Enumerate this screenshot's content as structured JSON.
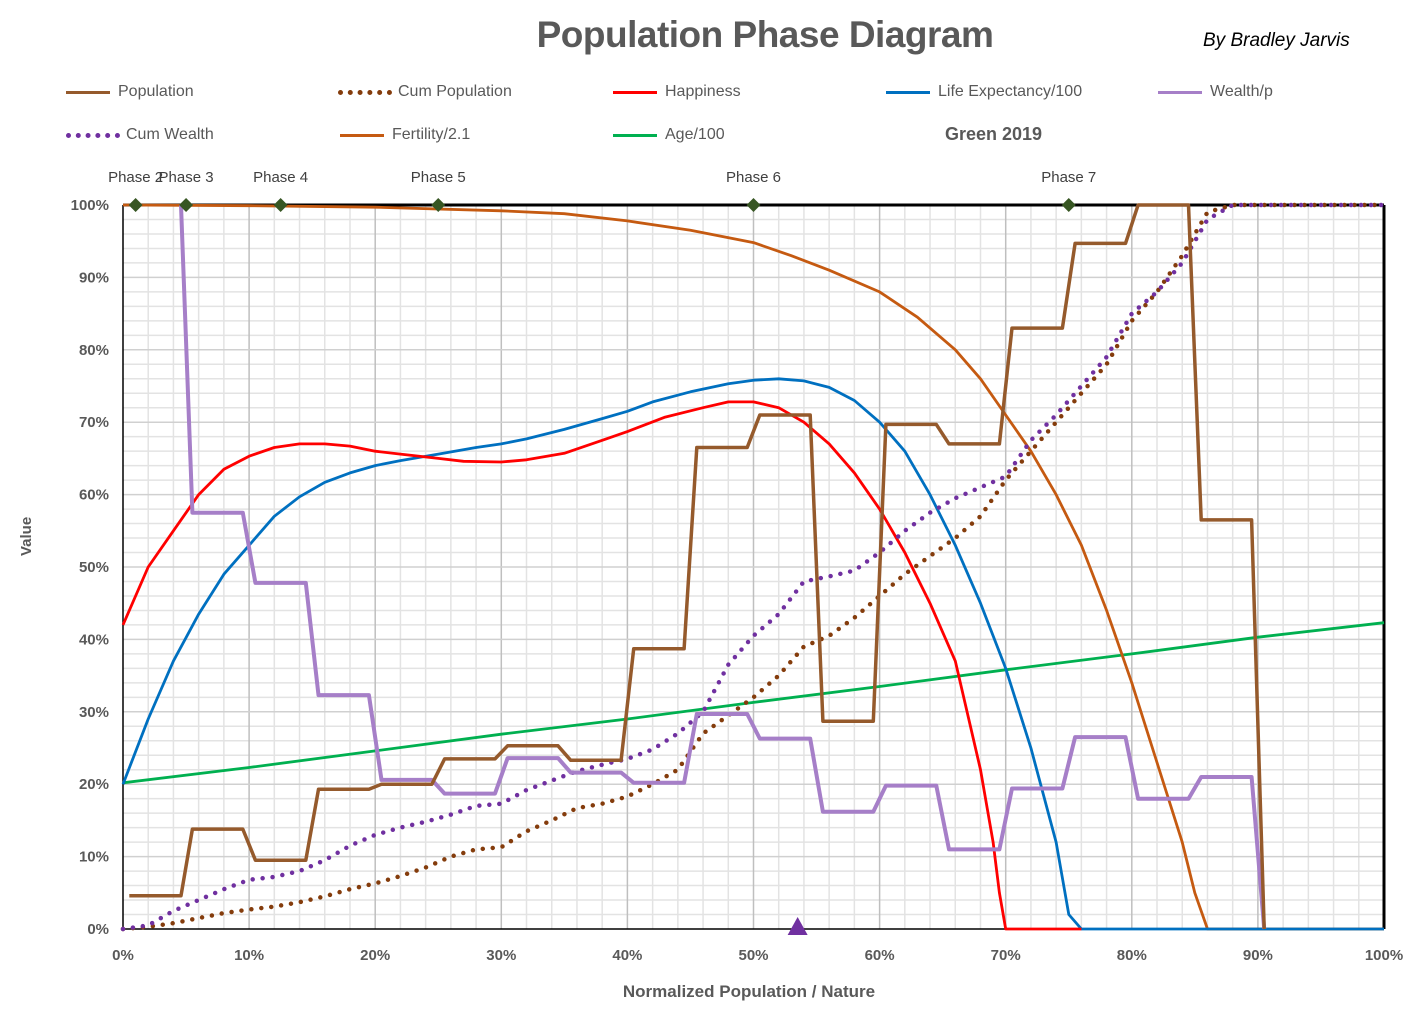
{
  "title": "Population Phase Diagram",
  "author": "By Bradley Jarvis",
  "note": "Green 2019",
  "colors": {
    "population": "#955A2C",
    "cum_population": "#843C0C",
    "happiness": "#FF0000",
    "life_expectancy": "#0070C0",
    "wealth_p": "#A67FC8",
    "cum_wealth": "#7030A0",
    "fertility": "#C55A11",
    "age": "#00B050",
    "phase_marker": "#375623",
    "triangle_marker": "#7030A0"
  },
  "chart_data": {
    "type": "line",
    "title": "Population Phase Diagram",
    "xlabel": "Normalized Population  / Nature",
    "ylabel": "Value",
    "xlim": [
      0,
      100
    ],
    "ylim": [
      0,
      100
    ],
    "x_ticks": [
      "0%",
      "10%",
      "20%",
      "30%",
      "40%",
      "50%",
      "60%",
      "70%",
      "80%",
      "90%",
      "100%"
    ],
    "y_ticks": [
      "0%",
      "10%",
      "20%",
      "30%",
      "40%",
      "50%",
      "60%",
      "70%",
      "80%",
      "90%",
      "100%"
    ],
    "grid": true,
    "legend": [
      {
        "key": "population",
        "label": "Population",
        "style": "solid"
      },
      {
        "key": "cum_population",
        "label": "Cum Population",
        "style": "dotted"
      },
      {
        "key": "happiness",
        "label": "Happiness",
        "style": "solid"
      },
      {
        "key": "life_expectancy",
        "label": "Life Expectancy/100",
        "style": "solid"
      },
      {
        "key": "wealth_p",
        "label": "Wealth/p",
        "style": "solid"
      },
      {
        "key": "cum_wealth",
        "label": "Cum Wealth",
        "style": "dotted"
      },
      {
        "key": "fertility",
        "label": "Fertility/2.1",
        "style": "solid"
      },
      {
        "key": "age",
        "label": "Age/100",
        "style": "solid"
      }
    ],
    "series": [
      {
        "key": "age",
        "name": "Age/100",
        "points": [
          [
            0,
            20.2
          ],
          [
            10,
            22.3
          ],
          [
            20,
            24.6
          ],
          [
            30,
            26.9
          ],
          [
            40,
            29
          ],
          [
            50,
            31.3
          ],
          [
            60,
            33.5
          ],
          [
            70,
            35.8
          ],
          [
            80,
            38
          ],
          [
            90,
            40.3
          ],
          [
            100,
            42.3
          ]
        ]
      },
      {
        "key": "fertility",
        "name": "Fertility/2.1",
        "points": [
          [
            0,
            100
          ],
          [
            10,
            99.9
          ],
          [
            20,
            99.7
          ],
          [
            30,
            99.2
          ],
          [
            35,
            98.8
          ],
          [
            40,
            97.8
          ],
          [
            45,
            96.5
          ],
          [
            50,
            94.8
          ],
          [
            53,
            93
          ],
          [
            56,
            91
          ],
          [
            60,
            88
          ],
          [
            63,
            84.5
          ],
          [
            66,
            80
          ],
          [
            68,
            76
          ],
          [
            70,
            71
          ],
          [
            72,
            66
          ],
          [
            74,
            60
          ],
          [
            76,
            53
          ],
          [
            78,
            44
          ],
          [
            80,
            34
          ],
          [
            82,
            23
          ],
          [
            84,
            12
          ],
          [
            85,
            5
          ],
          [
            86,
            0
          ],
          [
            100,
            0
          ]
        ]
      },
      {
        "key": "life_expectancy",
        "name": "Life Expectancy/100",
        "points": [
          [
            0,
            20
          ],
          [
            2,
            29
          ],
          [
            4,
            37
          ],
          [
            6,
            43.5
          ],
          [
            8,
            49
          ],
          [
            10,
            53
          ],
          [
            12,
            57
          ],
          [
            14,
            59.7
          ],
          [
            16,
            61.7
          ],
          [
            18,
            63
          ],
          [
            20,
            64
          ],
          [
            22,
            64.7
          ],
          [
            25,
            65.6
          ],
          [
            28,
            66.5
          ],
          [
            30,
            67
          ],
          [
            32,
            67.7
          ],
          [
            35,
            69
          ],
          [
            38,
            70.5
          ],
          [
            40,
            71.5
          ],
          [
            42,
            72.8
          ],
          [
            45,
            74.2
          ],
          [
            48,
            75.3
          ],
          [
            50,
            75.8
          ],
          [
            52,
            76
          ],
          [
            54,
            75.7
          ],
          [
            56,
            74.8
          ],
          [
            58,
            73
          ],
          [
            60,
            70
          ],
          [
            62,
            66
          ],
          [
            64,
            60
          ],
          [
            66,
            53
          ],
          [
            68,
            45
          ],
          [
            70,
            36
          ],
          [
            72,
            25
          ],
          [
            74,
            12
          ],
          [
            75,
            2
          ],
          [
            76,
            0
          ],
          [
            100,
            0
          ]
        ]
      },
      {
        "key": "happiness",
        "name": "Happiness",
        "points": [
          [
            0,
            42
          ],
          [
            2,
            50
          ],
          [
            4,
            55
          ],
          [
            6,
            60
          ],
          [
            8,
            63.5
          ],
          [
            10,
            65.3
          ],
          [
            12,
            66.5
          ],
          [
            14,
            67
          ],
          [
            16,
            67
          ],
          [
            18,
            66.7
          ],
          [
            20,
            66
          ],
          [
            22,
            65.6
          ],
          [
            25,
            65
          ],
          [
            27,
            64.6
          ],
          [
            30,
            64.5
          ],
          [
            32,
            64.8
          ],
          [
            35,
            65.7
          ],
          [
            38,
            67.5
          ],
          [
            40,
            68.7
          ],
          [
            43,
            70.7
          ],
          [
            46,
            72
          ],
          [
            48,
            72.8
          ],
          [
            50,
            72.8
          ],
          [
            52,
            72
          ],
          [
            54,
            70
          ],
          [
            56,
            67
          ],
          [
            58,
            63
          ],
          [
            60,
            58
          ],
          [
            62,
            52
          ],
          [
            64,
            45
          ],
          [
            66,
            37
          ],
          [
            68,
            22
          ],
          [
            69,
            12
          ],
          [
            69.5,
            5
          ],
          [
            70,
            0
          ],
          [
            76,
            0
          ]
        ]
      },
      {
        "key": "cum_population",
        "name": "Cum Population",
        "points": [
          [
            0,
            0
          ],
          [
            2,
            0.3
          ],
          [
            4,
            0.8
          ],
          [
            6,
            1.5
          ],
          [
            8,
            2.2
          ],
          [
            10,
            2.7
          ],
          [
            12,
            3.1
          ],
          [
            14,
            3.7
          ],
          [
            16,
            4.5
          ],
          [
            18,
            5.5
          ],
          [
            20,
            6.3
          ],
          [
            22,
            7.3
          ],
          [
            24,
            8.5
          ],
          [
            26,
            10
          ],
          [
            28,
            11
          ],
          [
            30,
            11.3
          ],
          [
            32,
            13.5
          ],
          [
            34,
            15
          ],
          [
            36,
            16.7
          ],
          [
            38,
            17.3
          ],
          [
            40,
            18.3
          ],
          [
            42,
            20
          ],
          [
            44,
            22
          ],
          [
            46,
            27
          ],
          [
            48,
            29.5
          ],
          [
            50,
            32
          ],
          [
            52,
            35
          ],
          [
            54,
            39
          ],
          [
            56,
            40.5
          ],
          [
            58,
            43
          ],
          [
            60,
            46
          ],
          [
            62,
            49
          ],
          [
            64,
            51.5
          ],
          [
            66,
            54
          ],
          [
            68,
            57
          ],
          [
            70,
            62
          ],
          [
            72,
            66
          ],
          [
            74,
            70
          ],
          [
            76,
            74
          ],
          [
            78,
            78
          ],
          [
            80,
            84
          ],
          [
            82,
            88
          ],
          [
            84,
            93
          ],
          [
            86,
            99
          ],
          [
            88,
            100
          ],
          [
            100,
            100
          ]
        ]
      },
      {
        "key": "cum_wealth",
        "name": "Cum Wealth",
        "points": [
          [
            0,
            0
          ],
          [
            2,
            0.5
          ],
          [
            4,
            2.5
          ],
          [
            6,
            4
          ],
          [
            8,
            5.5
          ],
          [
            10,
            6.8
          ],
          [
            12,
            7.2
          ],
          [
            14,
            8
          ],
          [
            16,
            9.5
          ],
          [
            18,
            11.5
          ],
          [
            20,
            13
          ],
          [
            22,
            14
          ],
          [
            24,
            14.8
          ],
          [
            26,
            15.8
          ],
          [
            28,
            17
          ],
          [
            30,
            17.3
          ],
          [
            32,
            19.2
          ],
          [
            34,
            20.5
          ],
          [
            36,
            21.8
          ],
          [
            38,
            22.7
          ],
          [
            40,
            23.5
          ],
          [
            42,
            24.8
          ],
          [
            44,
            27
          ],
          [
            46,
            30
          ],
          [
            48,
            36.5
          ],
          [
            50,
            40.5
          ],
          [
            52,
            43.5
          ],
          [
            54,
            48
          ],
          [
            56,
            48.7
          ],
          [
            58,
            49.5
          ],
          [
            60,
            52
          ],
          [
            62,
            55
          ],
          [
            64,
            57.5
          ],
          [
            66,
            59.5
          ],
          [
            68,
            61
          ],
          [
            70,
            62.5
          ],
          [
            72,
            67.5
          ],
          [
            74,
            71
          ],
          [
            76,
            75
          ],
          [
            78,
            79
          ],
          [
            80,
            85
          ],
          [
            82,
            88
          ],
          [
            84,
            92
          ],
          [
            86,
            98
          ],
          [
            88,
            100
          ],
          [
            100,
            100
          ]
        ]
      },
      {
        "key": "wealth_p",
        "name": "Wealth/p",
        "points": [
          [
            4.6,
            100
          ],
          [
            5.5,
            57.5
          ],
          [
            9.5,
            57.5
          ],
          [
            10.5,
            47.8
          ],
          [
            14.5,
            47.8
          ],
          [
            15.5,
            32.3
          ],
          [
            19.5,
            32.3
          ],
          [
            20.5,
            20.6
          ],
          [
            24.5,
            20.6
          ],
          [
            25.5,
            18.7
          ],
          [
            29.5,
            18.7
          ],
          [
            30.5,
            23.6
          ],
          [
            34.5,
            23.6
          ],
          [
            35.5,
            21.6
          ],
          [
            39.5,
            21.6
          ],
          [
            40.5,
            20.2
          ],
          [
            44.5,
            20.2
          ],
          [
            45.5,
            29.7
          ],
          [
            49.5,
            29.7
          ],
          [
            50.5,
            26.3
          ],
          [
            54.5,
            26.3
          ],
          [
            55.5,
            16.2
          ],
          [
            59.5,
            16.2
          ],
          [
            60.5,
            19.8
          ],
          [
            64.5,
            19.8
          ],
          [
            65.5,
            11
          ],
          [
            69.5,
            11
          ],
          [
            70.5,
            19.4
          ],
          [
            74.5,
            19.4
          ],
          [
            75.5,
            26.5
          ],
          [
            79.5,
            26.5
          ],
          [
            80.5,
            18
          ],
          [
            84.5,
            18
          ],
          [
            85.5,
            21
          ],
          [
            89.5,
            21
          ],
          [
            90.5,
            0
          ]
        ]
      },
      {
        "key": "population",
        "name": "Population",
        "points": [
          [
            0.5,
            4.6
          ],
          [
            4.6,
            4.6
          ],
          [
            5.5,
            13.8
          ],
          [
            9.5,
            13.8
          ],
          [
            10.5,
            9.5
          ],
          [
            14.5,
            9.5
          ],
          [
            15.5,
            19.3
          ],
          [
            19.5,
            19.3
          ],
          [
            20.5,
            20
          ],
          [
            24.5,
            20
          ],
          [
            25.5,
            23.5
          ],
          [
            29.5,
            23.5
          ],
          [
            30.5,
            25.3
          ],
          [
            34.5,
            25.3
          ],
          [
            35.5,
            23.3
          ],
          [
            39.5,
            23.3
          ],
          [
            40.5,
            38.7
          ],
          [
            44.5,
            38.7
          ],
          [
            45.5,
            66.5
          ],
          [
            49.5,
            66.5
          ],
          [
            50.5,
            71
          ],
          [
            54.5,
            71
          ],
          [
            55.5,
            28.7
          ],
          [
            59.5,
            28.7
          ],
          [
            60.5,
            69.7
          ],
          [
            64.5,
            69.7
          ],
          [
            65.5,
            67
          ],
          [
            69.5,
            67
          ],
          [
            70.5,
            83
          ],
          [
            74.5,
            83
          ],
          [
            75.5,
            94.7
          ],
          [
            79.5,
            94.7
          ],
          [
            80.5,
            100
          ],
          [
            84.5,
            100
          ],
          [
            85.5,
            56.5
          ],
          [
            89.5,
            56.5
          ],
          [
            90.5,
            0
          ]
        ]
      }
    ],
    "phase_markers": [
      {
        "label": "Phase 2",
        "x": 1,
        "y": 100
      },
      {
        "label": "Phase 3",
        "x": 5,
        "y": 100
      },
      {
        "label": "Phase 4",
        "x": 12.5,
        "y": 100
      },
      {
        "label": "Phase 5",
        "x": 25,
        "y": 100
      },
      {
        "label": "Phase 6",
        "x": 50,
        "y": 100
      },
      {
        "label": "Phase 7",
        "x": 75,
        "y": 100
      }
    ],
    "triangle_marker": {
      "x": 53.5,
      "y": 0
    }
  }
}
